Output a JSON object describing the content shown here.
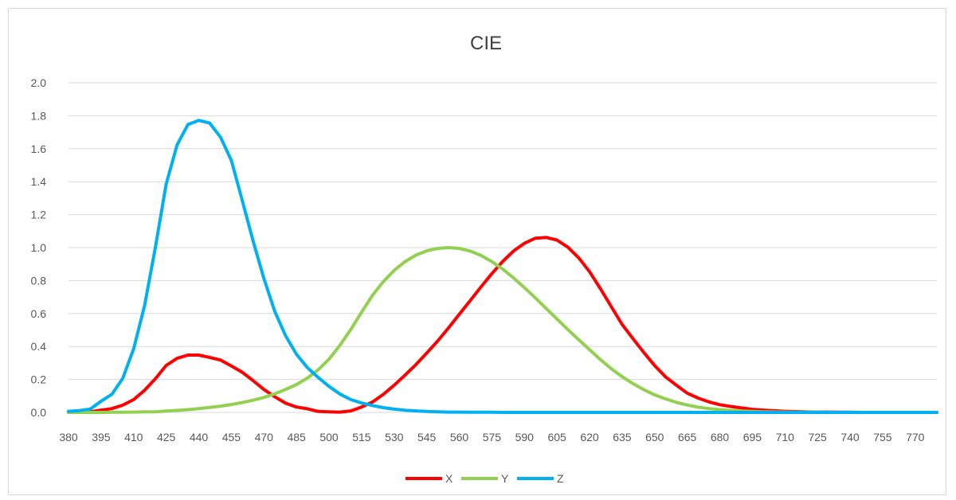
{
  "chart_data": {
    "type": "line",
    "title": "CIE",
    "xlabel": "",
    "ylabel": "",
    "ylim": [
      0,
      2.0
    ],
    "yticks": [
      "0.0",
      "0.2",
      "0.4",
      "0.6",
      "0.8",
      "1.0",
      "1.2",
      "1.4",
      "1.6",
      "1.8",
      "2.0"
    ],
    "x_tick_labels": [
      "380",
      "395",
      "410",
      "425",
      "440",
      "455",
      "470",
      "485",
      "500",
      "515",
      "530",
      "545",
      "560",
      "575",
      "590",
      "605",
      "620",
      "635",
      "650",
      "665",
      "680",
      "695",
      "710",
      "725",
      "740",
      "755",
      "770"
    ],
    "grid": true,
    "legend_position": "bottom",
    "x": [
      380,
      385,
      390,
      395,
      400,
      405,
      410,
      415,
      420,
      425,
      430,
      435,
      440,
      445,
      450,
      455,
      460,
      465,
      470,
      475,
      480,
      485,
      490,
      495,
      500,
      505,
      510,
      515,
      520,
      525,
      530,
      535,
      540,
      545,
      550,
      555,
      560,
      565,
      570,
      575,
      580,
      585,
      590,
      595,
      600,
      605,
      610,
      615,
      620,
      625,
      630,
      635,
      640,
      645,
      650,
      655,
      660,
      665,
      670,
      675,
      680,
      685,
      690,
      695,
      700,
      705,
      710,
      715,
      720,
      725,
      730,
      735,
      740,
      745,
      750,
      755,
      760,
      765,
      770,
      775,
      780
    ],
    "series": [
      {
        "name": "X",
        "color": "#ff0000",
        "values": [
          0.001,
          0.002,
          0.004,
          0.014,
          0.023,
          0.044,
          0.078,
          0.134,
          0.204,
          0.285,
          0.328,
          0.348,
          0.348,
          0.334,
          0.318,
          0.282,
          0.244,
          0.193,
          0.139,
          0.095,
          0.056,
          0.033,
          0.022,
          0.006,
          0.004,
          0.002,
          0.009,
          0.033,
          0.063,
          0.109,
          0.165,
          0.226,
          0.29,
          0.36,
          0.433,
          0.512,
          0.595,
          0.678,
          0.762,
          0.842,
          0.916,
          0.979,
          1.026,
          1.057,
          1.062,
          1.046,
          1.003,
          0.938,
          0.854,
          0.751,
          0.642,
          0.534,
          0.448,
          0.364,
          0.284,
          0.216,
          0.165,
          0.117,
          0.087,
          0.064,
          0.047,
          0.036,
          0.027,
          0.019,
          0.014,
          0.01,
          0.007,
          0.005,
          0.003,
          0.002,
          0.002,
          0.001,
          0.001,
          0.0,
          0.0,
          0.0,
          0.0,
          0.0,
          0.0,
          0.0,
          0.0
        ]
      },
      {
        "name": "Y",
        "color": "#92d050",
        "values": [
          0.0,
          0.0,
          0.0,
          0.0,
          0.001,
          0.001,
          0.002,
          0.004,
          0.004,
          0.008,
          0.012,
          0.017,
          0.023,
          0.03,
          0.038,
          0.048,
          0.06,
          0.074,
          0.091,
          0.113,
          0.139,
          0.169,
          0.208,
          0.259,
          0.323,
          0.407,
          0.503,
          0.608,
          0.71,
          0.793,
          0.862,
          0.915,
          0.954,
          0.98,
          0.995,
          1.0,
          0.995,
          0.979,
          0.952,
          0.915,
          0.87,
          0.816,
          0.757,
          0.695,
          0.631,
          0.567,
          0.503,
          0.441,
          0.381,
          0.321,
          0.265,
          0.217,
          0.175,
          0.138,
          0.107,
          0.082,
          0.061,
          0.045,
          0.032,
          0.023,
          0.017,
          0.012,
          0.008,
          0.006,
          0.004,
          0.003,
          0.002,
          0.001,
          0.001,
          0.001,
          0.0,
          0.0,
          0.0,
          0.0,
          0.0,
          0.0,
          0.0,
          0.0,
          0.0,
          0.0,
          0.0
        ]
      },
      {
        "name": "Z",
        "color": "#00b0f0",
        "values": [
          0.007,
          0.011,
          0.021,
          0.068,
          0.11,
          0.207,
          0.386,
          0.646,
          1.0,
          1.386,
          1.623,
          1.747,
          1.772,
          1.756,
          1.67,
          1.529,
          1.288,
          1.042,
          0.812,
          0.613,
          0.465,
          0.353,
          0.272,
          0.212,
          0.158,
          0.112,
          0.078,
          0.057,
          0.042,
          0.029,
          0.02,
          0.013,
          0.009,
          0.006,
          0.004,
          0.002,
          0.002,
          0.001,
          0.001,
          0.001,
          0.0,
          0.0,
          0.0,
          0.0,
          0.0,
          0.0,
          0.0,
          0.0,
          0.0,
          0.0,
          0.0,
          0.0,
          0.0,
          0.0,
          0.0,
          0.0,
          0.0,
          0.0,
          0.0,
          0.0,
          0.0,
          0.0,
          0.0,
          0.0,
          0.0,
          0.0,
          0.0,
          0.0,
          0.0,
          0.0,
          0.0,
          0.0,
          0.0,
          0.0,
          0.0,
          0.0,
          0.0,
          0.0,
          0.0,
          0.0,
          0.0
        ]
      }
    ]
  }
}
